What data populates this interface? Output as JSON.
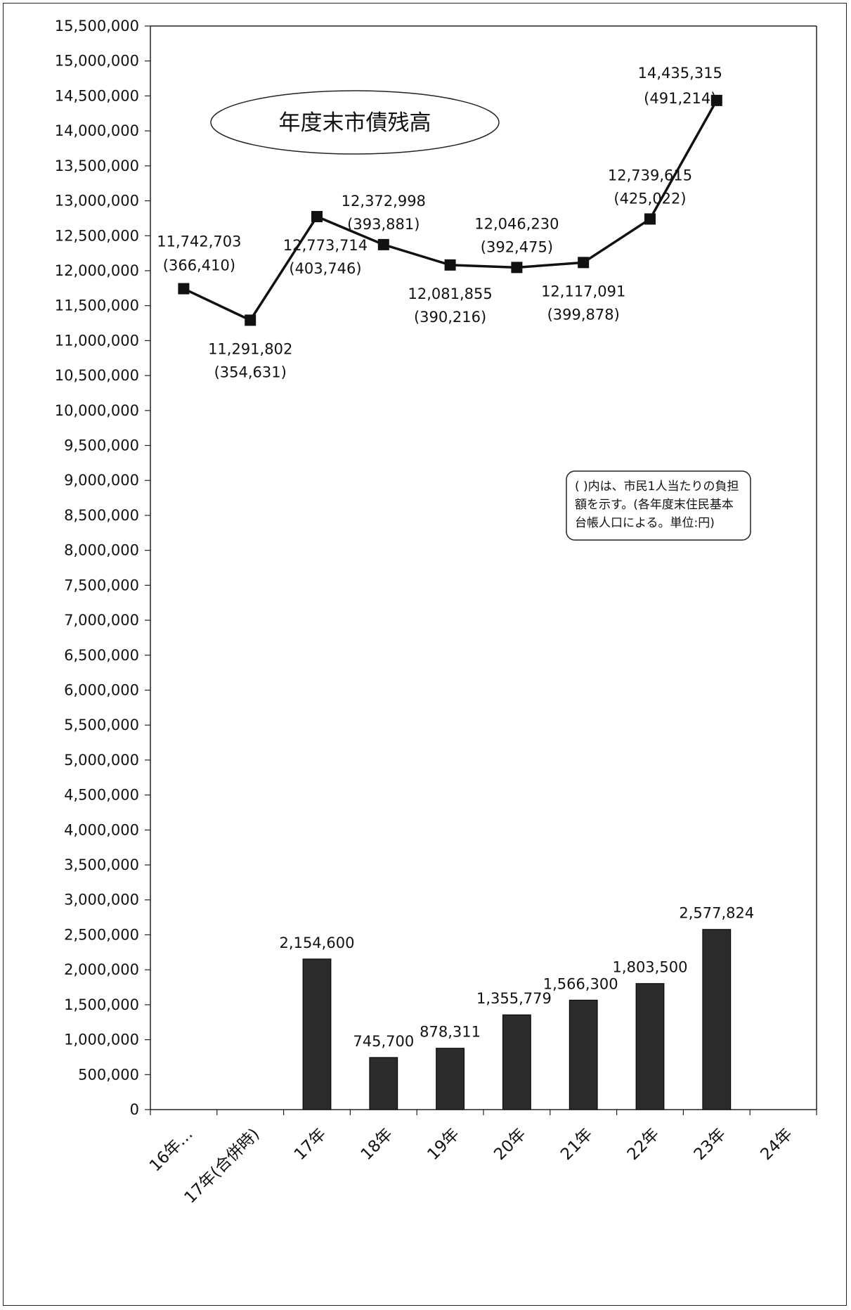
{
  "chart_data": {
    "type": "bar",
    "title": "年度末市債残高",
    "note_lines": [
      "( )内は、市民1人当たりの負担",
      "額を示す。(各年度末住民基本",
      "台帳人口による。単位:円)"
    ],
    "categories": [
      "16年…",
      "17年(合併時)",
      "17年",
      "18年",
      "19年",
      "20年",
      "21年",
      "22年",
      "23年",
      "24年"
    ],
    "ylim": [
      0,
      15500000
    ],
    "ytick_step": 500000,
    "series": [
      {
        "type": "bar",
        "values": [
          null,
          null,
          2154600,
          745700,
          878311,
          1355779,
          1566300,
          1803500,
          2577824,
          null
        ],
        "labels": [
          null,
          null,
          "2,154,600",
          "745,700",
          "878,311",
          "1,355,779",
          "1,566,300",
          "1,803,500",
          "2,577,824",
          null
        ]
      },
      {
        "type": "line",
        "values": [
          11742703,
          11291802,
          12773714,
          12372998,
          12081855,
          12046230,
          12117091,
          12739615,
          14435315,
          null
        ],
        "labels": [
          "11,742,703",
          "11,291,802",
          "12,773,714",
          "12,372,998",
          "12,081,855",
          "12,046,230",
          "12,117,091",
          "12,739,615",
          "14,435,315",
          null
        ],
        "per_capita": [
          "(366,410)",
          "(354,631)",
          "(403,746)",
          "(393,881)",
          "(390,216)",
          "(392,475)",
          "(399,878)",
          "(425,022)",
          "(491,214)",
          null
        ],
        "label_position": [
          "above",
          "below",
          "below",
          "above",
          "below",
          "above",
          "below",
          "above",
          "above",
          null
        ]
      }
    ],
    "grid": false,
    "colors": {
      "bar": "#2b2b2b",
      "line": "#111111",
      "marker": "#111111"
    }
  }
}
